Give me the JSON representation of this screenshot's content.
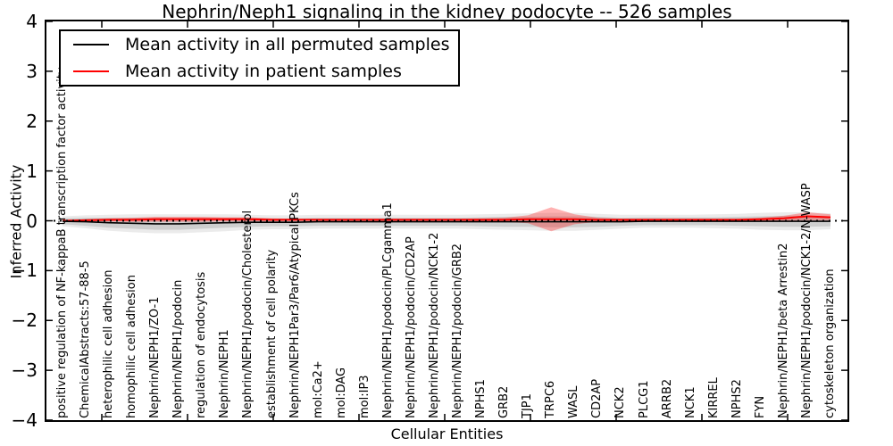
{
  "title": "Nephrin/Neph1 signaling in the kidney podocyte -- 526 samples",
  "axes": {
    "xlabel": "Cellular Entities",
    "ylabel": "Inferred Activity",
    "yticks": [
      "4",
      "3",
      "2",
      "1",
      "0",
      "−1",
      "−2",
      "−3",
      "−4"
    ],
    "ylim": [
      -4,
      4
    ]
  },
  "chart_data": {
    "type": "line",
    "title": "Nephrin/Neph1 signaling in the kidney podocyte -- 526 samples",
    "xlabel": "Cellular Entities",
    "ylabel": "Inferred Activity",
    "ylim": [
      -4,
      4
    ],
    "grid": false,
    "legend_position": "upper left",
    "zero_line": {
      "style": "dotted",
      "color": "#000000",
      "y": 0
    },
    "categories": [
      "positive regulation of NF-kappaB transcription factor activity",
      "ChemicalAbstracts:57-88-5",
      "heterophilic cell adhesion",
      "homophilic cell adhesion",
      "Nephrin/NEPH1/ZO-1",
      "Nephrin/NEPH1/podocin",
      "regulation of endocytosis",
      "Nephrin/NEPH1",
      "Nephrin/NEPH1/podocin/Cholesterol",
      "establishment of cell polarity",
      "Nephrin/NEPH1Par3/Par6/Atypical PKCs",
      "mol:Ca2+",
      "mol:DAG",
      "mol:IP3",
      "Nephrin/NEPH1/podocin/PLCgamma1",
      "Nephrin/NEPH1/podocin/CD2AP",
      "Nephrin/NEPH1/podocin/NCK1-2",
      "Nephrin/NEPH1/podocin/GRB2",
      "NPHS1",
      "GRB2",
      "TJP1",
      "TRPC6",
      "WASL",
      "CD2AP",
      "NCK2",
      "PLCG1",
      "ARRB2",
      "NCK1",
      "KIRREL",
      "NPHS2",
      "FYN",
      "Nephrin/NEPH1/beta Arrestin2",
      "Nephrin/NEPH1/podocin/NCK1-2/N-WASP",
      "cytoskeleton organization"
    ],
    "series": [
      {
        "name": "Mean activity in all permuted samples",
        "color": "#000000",
        "values": [
          -0.01,
          -0.02,
          -0.04,
          -0.05,
          -0.06,
          -0.06,
          -0.05,
          -0.04,
          -0.03,
          -0.03,
          -0.03,
          -0.02,
          -0.02,
          -0.02,
          -0.02,
          -0.02,
          -0.02,
          -0.02,
          -0.02,
          -0.02,
          -0.02,
          -0.02,
          -0.02,
          -0.02,
          -0.02,
          -0.01,
          -0.01,
          -0.01,
          -0.01,
          -0.01,
          -0.01,
          -0.01,
          -0.01,
          -0.01
        ]
      },
      {
        "name": "Mean activity in patient samples",
        "color": "#ff0000",
        "values": [
          0.0,
          0.01,
          0.02,
          0.02,
          0.03,
          0.03,
          0.03,
          0.03,
          0.03,
          0.02,
          0.02,
          0.02,
          0.02,
          0.02,
          0.02,
          0.02,
          0.02,
          0.02,
          0.02,
          0.02,
          0.03,
          0.03,
          0.03,
          0.02,
          0.02,
          0.02,
          0.02,
          0.02,
          0.02,
          0.02,
          0.03,
          0.05,
          0.09,
          0.07
        ]
      }
    ],
    "bands": [
      {
        "name": "permuted-spread-outer",
        "series": 0,
        "color": "#000000",
        "opacity": 0.08,
        "half_widths": [
          0.1,
          0.13,
          0.16,
          0.18,
          0.19,
          0.19,
          0.18,
          0.17,
          0.15,
          0.14,
          0.14,
          0.14,
          0.14,
          0.14,
          0.14,
          0.14,
          0.14,
          0.14,
          0.15,
          0.16,
          0.17,
          0.18,
          0.18,
          0.16,
          0.14,
          0.13,
          0.13,
          0.13,
          0.14,
          0.15,
          0.17,
          0.18,
          0.18,
          0.16
        ]
      },
      {
        "name": "permuted-spread-inner",
        "series": 0,
        "color": "#000000",
        "opacity": 0.12,
        "half_widths": [
          0.06,
          0.08,
          0.1,
          0.11,
          0.12,
          0.12,
          0.11,
          0.1,
          0.09,
          0.08,
          0.08,
          0.08,
          0.08,
          0.08,
          0.08,
          0.08,
          0.08,
          0.08,
          0.09,
          0.1,
          0.1,
          0.11,
          0.11,
          0.1,
          0.08,
          0.08,
          0.08,
          0.08,
          0.08,
          0.09,
          0.1,
          0.11,
          0.11,
          0.1
        ]
      },
      {
        "name": "patient-spread",
        "series": 1,
        "color": "#ff0000",
        "opacity": 0.3,
        "half_widths": [
          0.01,
          0.02,
          0.03,
          0.04,
          0.05,
          0.05,
          0.05,
          0.04,
          0.04,
          0.03,
          0.02,
          0.02,
          0.02,
          0.02,
          0.02,
          0.02,
          0.02,
          0.02,
          0.03,
          0.04,
          0.08,
          0.24,
          0.1,
          0.04,
          0.02,
          0.02,
          0.02,
          0.02,
          0.02,
          0.02,
          0.03,
          0.05,
          0.08,
          0.06
        ]
      }
    ]
  }
}
